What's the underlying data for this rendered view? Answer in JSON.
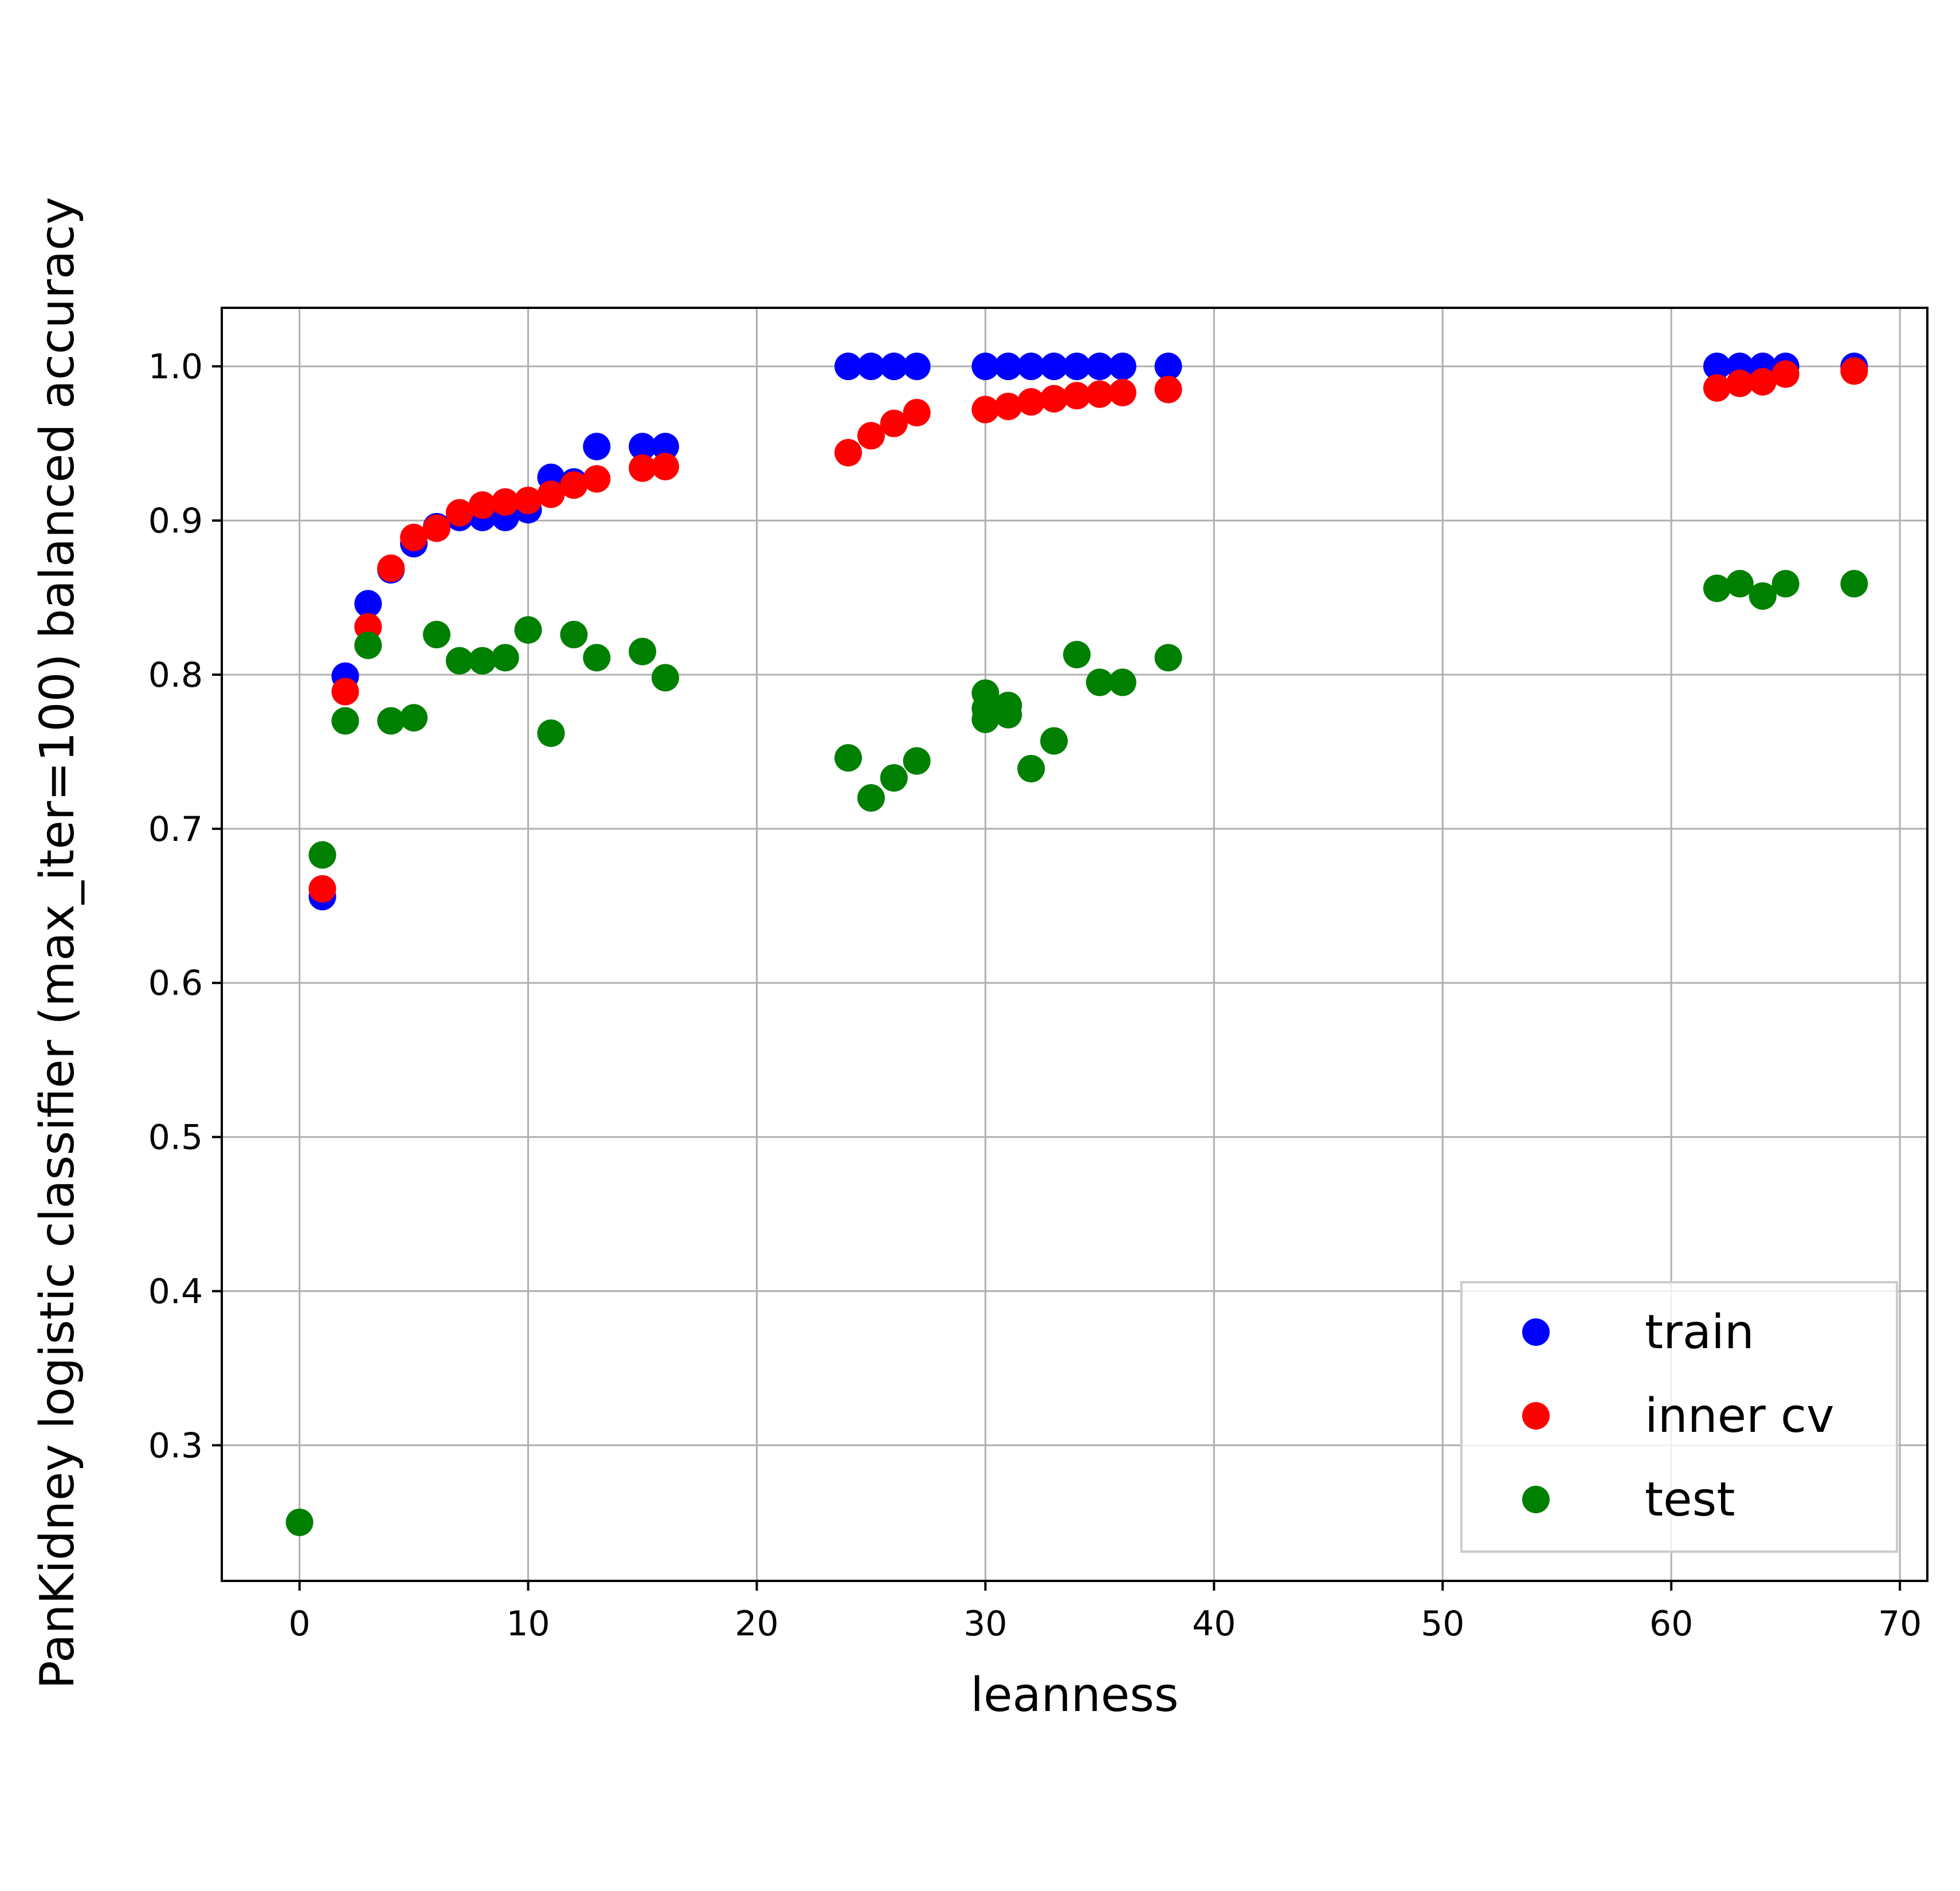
{
  "chart_data": {
    "type": "scatter",
    "xlabel": "leanness",
    "ylabel": "PanKidney logistic classifier (max_iter=100) balanced accuracy",
    "xlim": [
      -3.4,
      71.2
    ],
    "ylim": [
      0.212,
      1.038
    ],
    "x_ticks": [
      0,
      10,
      20,
      30,
      40,
      50,
      60,
      70
    ],
    "y_ticks": [
      0.3,
      0.4,
      0.5,
      0.6,
      0.7,
      0.8,
      0.9,
      1.0
    ],
    "x_tick_labels": [
      "0",
      "10",
      "20",
      "30",
      "40",
      "50",
      "60",
      "70"
    ],
    "y_tick_labels": [
      "0.3",
      "0.4",
      "0.5",
      "0.6",
      "0.7",
      "0.8",
      "0.9",
      "1.0"
    ],
    "grid": true,
    "legend_position": "lower-right",
    "series": [
      {
        "name": "train",
        "color": "#0000ff",
        "points": [
          [
            1,
            0.656
          ],
          [
            2,
            0.799
          ],
          [
            3,
            0.846
          ],
          [
            4,
            0.868
          ],
          [
            5,
            0.885
          ],
          [
            6,
            0.896
          ],
          [
            7,
            0.902
          ],
          [
            8,
            0.902
          ],
          [
            9,
            0.902
          ],
          [
            10,
            0.907
          ],
          [
            11,
            0.928
          ],
          [
            12,
            0.925
          ],
          [
            13,
            0.948
          ],
          [
            15,
            0.948
          ],
          [
            16,
            0.948
          ],
          [
            24,
            1.0
          ],
          [
            25,
            1.0
          ],
          [
            26,
            1.0
          ],
          [
            27,
            1.0
          ],
          [
            30,
            1.0
          ],
          [
            31,
            1.0
          ],
          [
            32,
            1.0
          ],
          [
            33,
            1.0
          ],
          [
            34,
            1.0
          ],
          [
            35,
            1.0
          ],
          [
            36,
            1.0
          ],
          [
            38,
            1.0
          ],
          [
            62,
            1.0
          ],
          [
            63,
            1.0
          ],
          [
            64,
            1.0
          ],
          [
            65,
            1.0
          ],
          [
            68,
            1.0
          ]
        ]
      },
      {
        "name": "inner cv",
        "color": "#ff0000",
        "points": [
          [
            1,
            0.661
          ],
          [
            2,
            0.789
          ],
          [
            3,
            0.831
          ],
          [
            4,
            0.869
          ],
          [
            5,
            0.889
          ],
          [
            6,
            0.895
          ],
          [
            7,
            0.905
          ],
          [
            8,
            0.91
          ],
          [
            9,
            0.912
          ],
          [
            10,
            0.913
          ],
          [
            11,
            0.917
          ],
          [
            12,
            0.923
          ],
          [
            13,
            0.927
          ],
          [
            15,
            0.934
          ],
          [
            16,
            0.935
          ],
          [
            24,
            0.944
          ],
          [
            25,
            0.955
          ],
          [
            26,
            0.963
          ],
          [
            27,
            0.97
          ],
          [
            30,
            0.972
          ],
          [
            31,
            0.974
          ],
          [
            32,
            0.977
          ],
          [
            33,
            0.979
          ],
          [
            34,
            0.981
          ],
          [
            35,
            0.982
          ],
          [
            36,
            0.983
          ],
          [
            38,
            0.985
          ],
          [
            62,
            0.986
          ],
          [
            63,
            0.989
          ],
          [
            64,
            0.99
          ],
          [
            65,
            0.995
          ],
          [
            68,
            0.997
          ]
        ]
      },
      {
        "name": "test",
        "color": "#008000",
        "points": [
          [
            0,
            0.25
          ],
          [
            1,
            0.683
          ],
          [
            2,
            0.77
          ],
          [
            3,
            0.819
          ],
          [
            4,
            0.77
          ],
          [
            5,
            0.772
          ],
          [
            6,
            0.826
          ],
          [
            7,
            0.809
          ],
          [
            8,
            0.809
          ],
          [
            9,
            0.811
          ],
          [
            10,
            0.829
          ],
          [
            11,
            0.762
          ],
          [
            12,
            0.826
          ],
          [
            13,
            0.811
          ],
          [
            15,
            0.815
          ],
          [
            16,
            0.798
          ],
          [
            24,
            0.746
          ],
          [
            25,
            0.72
          ],
          [
            26,
            0.733
          ],
          [
            27,
            0.744
          ],
          [
            30,
            0.771
          ],
          [
            30,
            0.778
          ],
          [
            30,
            0.788
          ],
          [
            31,
            0.774
          ],
          [
            31,
            0.78
          ],
          [
            32,
            0.739
          ],
          [
            33,
            0.757
          ],
          [
            34,
            0.813
          ],
          [
            35,
            0.795
          ],
          [
            36,
            0.795
          ],
          [
            38,
            0.811
          ],
          [
            62,
            0.856
          ],
          [
            63,
            0.859
          ],
          [
            64,
            0.851
          ],
          [
            65,
            0.859
          ],
          [
            68,
            0.859
          ]
        ]
      }
    ]
  }
}
